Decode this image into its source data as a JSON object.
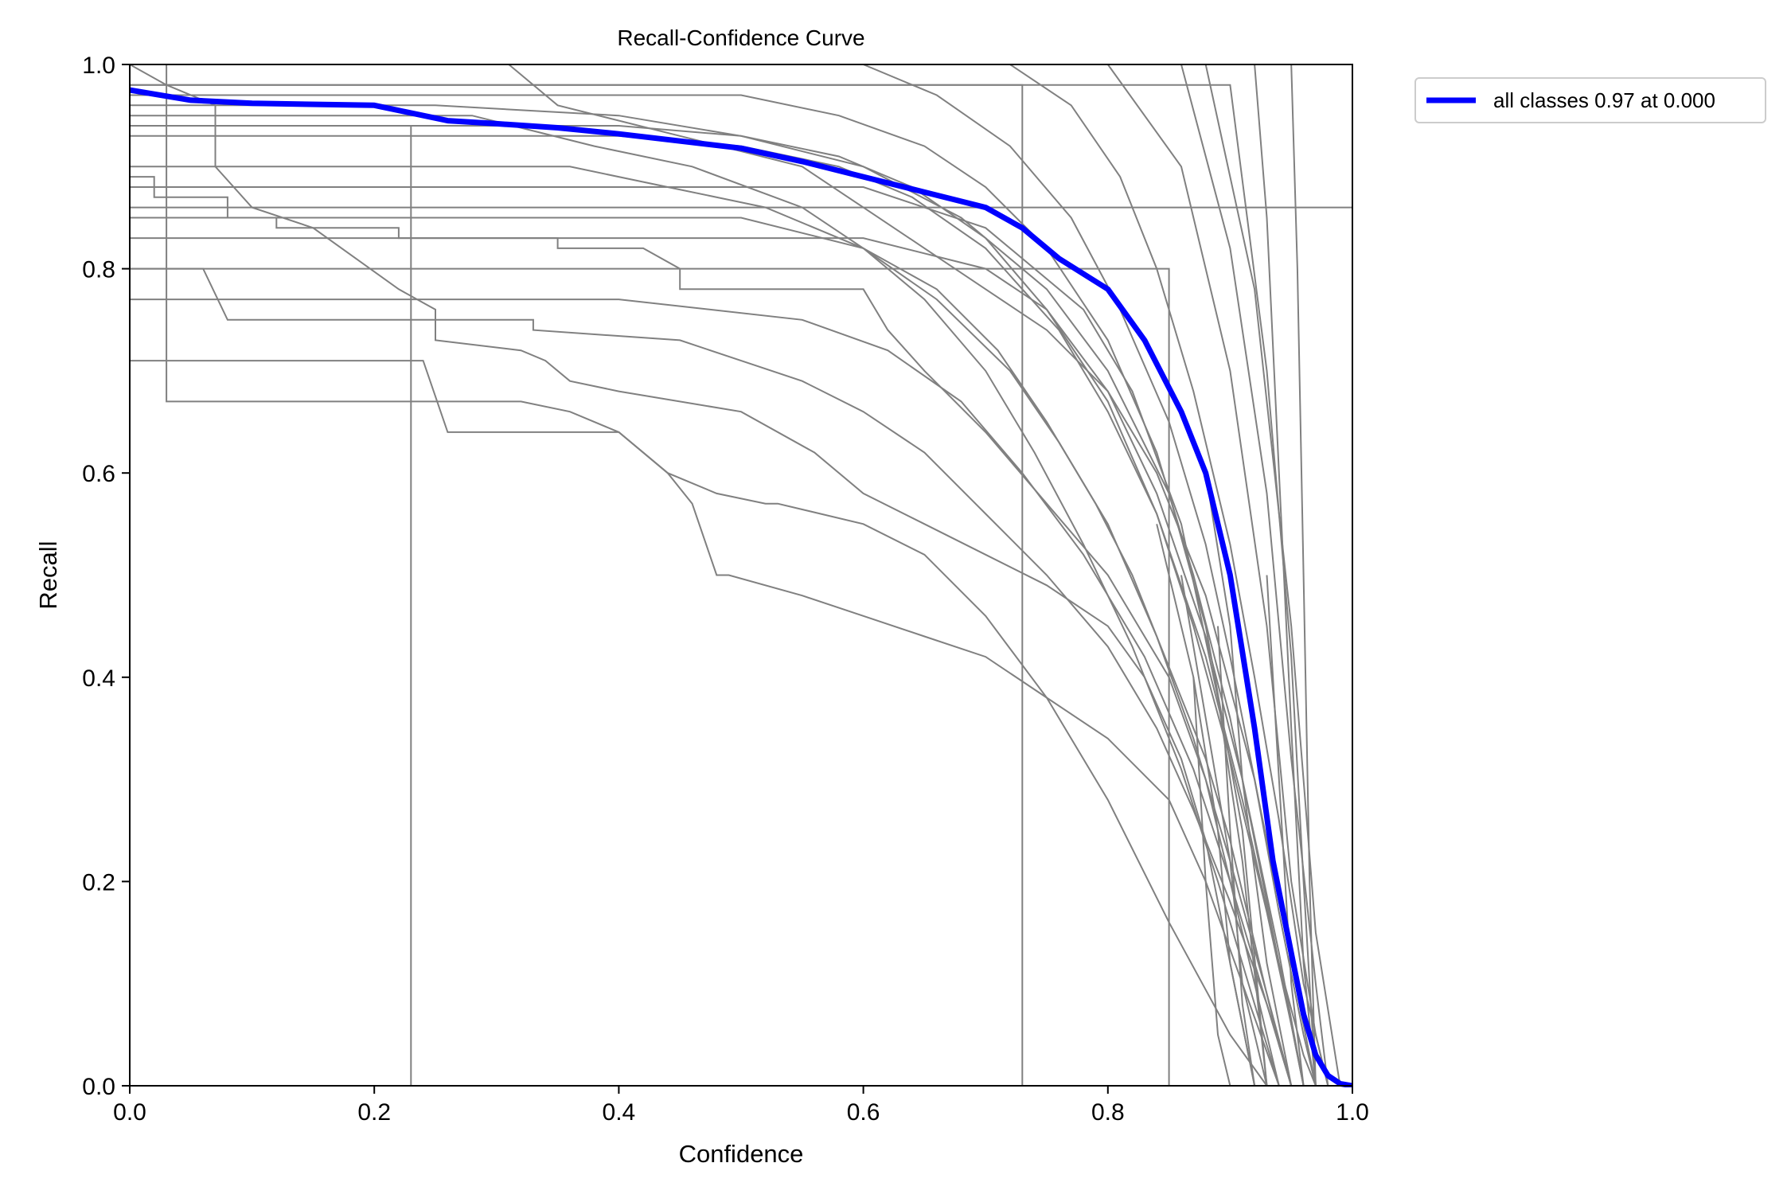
{
  "chart_data": {
    "type": "line",
    "title": "Recall-Confidence Curve",
    "xlabel": "Confidence",
    "ylabel": "Recall",
    "xlim": [
      0,
      1
    ],
    "ylim": [
      0,
      1
    ],
    "xticks": [
      "0.0",
      "0.2",
      "0.4",
      "0.6",
      "0.8",
      "1.0"
    ],
    "yticks": [
      "0.0",
      "0.2",
      "0.4",
      "0.6",
      "0.8",
      "1.0"
    ],
    "grid": false,
    "legend": {
      "placement": "outside-top-right",
      "entries": [
        "all classes 0.97 at 0.000"
      ]
    },
    "colors": {
      "class_lines": "#808080",
      "all_classes": "#0000ff"
    },
    "series": [
      {
        "name": "all classes 0.97 at 0.000",
        "emphasis": true,
        "x": [
          0,
          0.05,
          0.1,
          0.2,
          0.26,
          0.3,
          0.35,
          0.4,
          0.45,
          0.5,
          0.55,
          0.6,
          0.65,
          0.7,
          0.73,
          0.76,
          0.8,
          0.83,
          0.86,
          0.88,
          0.9,
          0.92,
          0.935,
          0.95,
          0.96,
          0.97,
          0.98,
          0.99,
          1.0
        ],
        "y": [
          0.975,
          0.965,
          0.962,
          0.96,
          0.945,
          0.942,
          0.938,
          0.932,
          0.925,
          0.918,
          0.905,
          0.89,
          0.875,
          0.86,
          0.84,
          0.81,
          0.78,
          0.73,
          0.66,
          0.6,
          0.5,
          0.35,
          0.22,
          0.13,
          0.07,
          0.03,
          0.01,
          0.002,
          0
        ]
      },
      {
        "x": [
          0,
          0.03,
          0.03,
          1.0
        ],
        "y": [
          0.86,
          0.86,
          0.86,
          0.86
        ]
      },
      {
        "x": [
          0,
          0.1,
          0.2,
          0.29,
          0.31,
          0.35,
          0.45,
          0.55,
          0.6,
          0.65,
          0.7,
          0.75,
          0.8,
          0.84,
          0.88,
          0.92,
          0.95,
          0.97
        ],
        "y": [
          1.0,
          1.0,
          1.0,
          1.0,
          1.0,
          0.96,
          0.93,
          0.9,
          0.86,
          0.82,
          0.78,
          0.74,
          0.68,
          0.6,
          0.48,
          0.3,
          0.12,
          0
        ]
      },
      {
        "x": [
          0,
          0.02,
          0.02,
          0.08,
          0.08,
          0.12,
          0.12,
          0.22,
          0.22,
          0.35,
          0.35,
          0.42,
          0.45,
          0.45,
          0.6,
          0.62,
          0.65,
          0.7,
          0.75,
          0.8,
          0.85,
          0.88,
          0.9,
          0.92,
          0.94
        ],
        "y": [
          0.89,
          0.89,
          0.87,
          0.87,
          0.85,
          0.85,
          0.84,
          0.84,
          0.83,
          0.83,
          0.82,
          0.82,
          0.8,
          0.78,
          0.78,
          0.74,
          0.7,
          0.64,
          0.57,
          0.5,
          0.4,
          0.3,
          0.2,
          0.1,
          0
        ]
      },
      {
        "x": [
          0,
          0.03,
          0.07,
          0.07,
          0.1,
          0.15,
          0.22,
          0.25,
          0.25,
          0.32,
          0.34,
          0.36,
          0.4,
          0.5,
          0.56,
          0.6,
          0.65,
          0.7,
          0.75,
          0.8,
          0.83,
          0.86,
          0.88,
          0.9,
          0.92
        ],
        "y": [
          1.0,
          0.98,
          0.96,
          0.9,
          0.86,
          0.84,
          0.78,
          0.76,
          0.73,
          0.72,
          0.71,
          0.69,
          0.68,
          0.66,
          0.62,
          0.58,
          0.55,
          0.52,
          0.49,
          0.45,
          0.4,
          0.32,
          0.24,
          0.12,
          0
        ]
      },
      {
        "x": [
          0,
          0.06,
          0.08,
          0.15,
          0.28,
          0.33,
          0.33,
          0.45,
          0.5,
          0.55,
          0.6,
          0.65,
          0.7,
          0.75,
          0.8,
          0.84,
          0.87,
          0.9,
          0.93,
          0.95
        ],
        "y": [
          0.8,
          0.8,
          0.75,
          0.75,
          0.75,
          0.75,
          0.74,
          0.73,
          0.71,
          0.69,
          0.66,
          0.62,
          0.56,
          0.5,
          0.43,
          0.35,
          0.27,
          0.18,
          0.08,
          0
        ]
      },
      {
        "x": [
          0,
          0.03,
          0.03,
          0.2,
          0.22,
          0.22,
          0.32,
          0.36,
          0.4,
          0.44,
          0.46,
          0.48,
          0.49,
          0.55,
          0.6,
          0.65,
          0.7,
          0.75,
          0.8,
          0.85,
          0.88,
          0.91,
          0.94
        ],
        "y": [
          1.0,
          1.0,
          0.67,
          0.67,
          0.67,
          0.67,
          0.67,
          0.66,
          0.64,
          0.6,
          0.57,
          0.5,
          0.5,
          0.48,
          0.46,
          0.44,
          0.42,
          0.38,
          0.34,
          0.28,
          0.2,
          0.1,
          0
        ]
      },
      {
        "x": [
          0,
          0.1,
          0.2,
          0.24,
          0.26,
          0.34,
          0.4,
          0.44,
          0.48,
          0.52,
          0.53,
          0.6,
          0.65,
          0.7,
          0.75,
          0.8,
          0.85,
          0.9,
          0.93
        ],
        "y": [
          0.71,
          0.71,
          0.71,
          0.71,
          0.64,
          0.64,
          0.64,
          0.6,
          0.58,
          0.57,
          0.57,
          0.55,
          0.52,
          0.46,
          0.38,
          0.28,
          0.16,
          0.05,
          0
        ]
      },
      {
        "x": [
          0,
          0.28,
          0.38,
          0.46,
          0.55,
          0.6,
          0.65,
          0.7,
          0.74,
          0.78,
          0.82,
          0.86,
          0.89,
          0.92,
          0.94
        ],
        "y": [
          0.95,
          0.95,
          0.92,
          0.9,
          0.86,
          0.82,
          0.77,
          0.7,
          0.62,
          0.53,
          0.43,
          0.31,
          0.2,
          0.08,
          0
        ]
      },
      {
        "x": [
          0,
          0.3,
          0.4,
          0.5,
          0.58,
          0.64,
          0.7,
          0.75,
          0.8,
          0.84,
          0.88,
          0.91,
          0.94,
          0.96
        ],
        "y": [
          0.94,
          0.94,
          0.94,
          0.93,
          0.91,
          0.88,
          0.83,
          0.76,
          0.67,
          0.56,
          0.42,
          0.28,
          0.12,
          0
        ]
      },
      {
        "x": [
          0,
          0.36,
          0.44,
          0.52,
          0.6,
          0.66,
          0.72,
          0.76,
          0.8,
          0.84,
          0.87,
          0.9,
          0.93,
          0.95
        ],
        "y": [
          0.9,
          0.9,
          0.88,
          0.86,
          0.82,
          0.77,
          0.7,
          0.63,
          0.55,
          0.44,
          0.34,
          0.22,
          0.09,
          0
        ]
      },
      {
        "x": [
          0,
          0.4,
          0.5,
          0.58,
          0.64,
          0.7,
          0.76,
          0.8,
          0.84,
          0.87,
          0.9,
          0.93,
          0.95,
          0.96
        ],
        "y": [
          0.93,
          0.93,
          0.92,
          0.9,
          0.87,
          0.82,
          0.74,
          0.66,
          0.56,
          0.45,
          0.32,
          0.17,
          0.06,
          0
        ]
      },
      {
        "x": [
          0,
          0.5,
          0.58,
          0.65,
          0.7,
          0.75,
          0.8,
          0.84,
          0.87,
          0.9,
          0.92,
          0.94,
          0.96,
          0.97
        ],
        "y": [
          0.97,
          0.97,
          0.95,
          0.92,
          0.88,
          0.82,
          0.73,
          0.62,
          0.5,
          0.36,
          0.24,
          0.12,
          0.03,
          0
        ]
      },
      {
        "x": [
          0,
          0.6,
          0.66,
          0.72,
          0.77,
          0.81,
          0.85,
          0.88,
          0.9,
          0.92,
          0.94,
          0.96,
          0.97
        ],
        "y": [
          1.0,
          1.0,
          0.97,
          0.92,
          0.85,
          0.76,
          0.65,
          0.53,
          0.42,
          0.3,
          0.17,
          0.05,
          0
        ]
      },
      {
        "x": [
          0,
          0.72,
          0.77,
          0.81,
          0.84,
          0.87,
          0.9,
          0.92,
          0.94,
          0.96,
          0.98
        ],
        "y": [
          1.0,
          1.0,
          0.96,
          0.89,
          0.8,
          0.68,
          0.53,
          0.4,
          0.26,
          0.1,
          0
        ]
      },
      {
        "x": [
          0,
          0.2,
          0.2,
          0.6,
          0.7,
          0.75,
          0.8,
          0.84,
          0.88,
          0.91,
          0.94,
          0.96
        ],
        "y": [
          0.83,
          0.83,
          0.83,
          0.83,
          0.8,
          0.76,
          0.68,
          0.58,
          0.44,
          0.3,
          0.13,
          0
        ]
      },
      {
        "x": [
          0,
          0.1,
          0.1,
          0.4,
          0.55,
          0.62,
          0.68,
          0.73,
          0.78,
          0.83,
          0.87,
          0.9,
          0.93,
          0.95
        ],
        "y": [
          0.77,
          0.77,
          0.77,
          0.77,
          0.75,
          0.72,
          0.67,
          0.6,
          0.52,
          0.42,
          0.31,
          0.2,
          0.08,
          0
        ]
      },
      {
        "x": [
          0,
          0.5,
          0.6,
          0.66,
          0.71,
          0.75,
          0.79,
          0.82,
          0.85,
          0.88,
          0.9,
          0.92,
          0.94,
          0.95
        ],
        "y": [
          0.85,
          0.85,
          0.82,
          0.78,
          0.72,
          0.65,
          0.57,
          0.5,
          0.41,
          0.32,
          0.24,
          0.14,
          0.04,
          0
        ]
      },
      {
        "x": [
          0,
          0.23,
          0.23,
          0.23
        ],
        "y": [
          0.94,
          0.94,
          0.5,
          0
        ]
      },
      {
        "x": [
          0,
          0.5,
          0.73,
          0.73,
          0.73
        ],
        "y": [
          0.98,
          0.98,
          0.98,
          0.5,
          0
        ]
      },
      {
        "x": [
          0,
          0.7,
          0.8,
          0.85,
          0.85,
          0.85
        ],
        "y": [
          0.8,
          0.8,
          0.8,
          0.8,
          0.4,
          0
        ]
      },
      {
        "x": [
          0,
          0.8,
          0.86,
          0.9,
          0.93,
          0.95,
          0.97,
          0.98
        ],
        "y": [
          1.0,
          1.0,
          0.9,
          0.7,
          0.45,
          0.2,
          0.05,
          0
        ]
      },
      {
        "x": [
          0,
          0.86,
          0.9,
          0.93,
          0.95,
          0.97,
          0.98
        ],
        "y": [
          1.0,
          1.0,
          0.82,
          0.58,
          0.32,
          0.1,
          0
        ]
      },
      {
        "x": [
          0,
          0.88,
          0.92,
          0.95,
          0.97,
          0.99
        ],
        "y": [
          1.0,
          1.0,
          0.78,
          0.45,
          0.15,
          0
        ]
      },
      {
        "x": [
          0,
          0.9,
          0.93,
          0.95,
          0.96,
          0.97
        ],
        "y": [
          0.98,
          0.98,
          0.7,
          0.42,
          0.2,
          0
        ]
      },
      {
        "x": [
          0.92,
          0.93,
          0.94,
          0.95,
          0.96,
          0.97
        ],
        "y": [
          1.0,
          0.85,
          0.6,
          0.35,
          0.12,
          0
        ]
      },
      {
        "x": [
          0.95,
          0.955,
          0.96,
          0.965,
          0.97
        ],
        "y": [
          1.0,
          0.8,
          0.5,
          0.2,
          0
        ]
      },
      {
        "x": [
          0.88,
          0.9,
          0.91,
          0.93,
          0.95
        ],
        "y": [
          0.6,
          0.45,
          0.3,
          0.12,
          0
        ]
      },
      {
        "x": [
          0.86,
          0.88,
          0.9,
          0.91,
          0.93
        ],
        "y": [
          0.5,
          0.36,
          0.22,
          0.1,
          0
        ]
      },
      {
        "x": [
          0.84,
          0.87,
          0.89,
          0.9,
          0.92
        ],
        "y": [
          0.55,
          0.4,
          0.25,
          0.12,
          0
        ]
      },
      {
        "x": [
          0,
          0.6,
          0.7,
          0.78,
          0.82,
          0.86,
          0.89,
          0.91,
          0.93
        ],
        "y": [
          0.88,
          0.88,
          0.84,
          0.76,
          0.68,
          0.55,
          0.38,
          0.22,
          0
        ]
      },
      {
        "x": [
          0,
          0.15,
          0.25,
          0.4,
          0.5,
          0.6,
          0.68,
          0.75,
          0.8,
          0.85,
          0.88,
          0.91,
          0.93
        ],
        "y": [
          0.96,
          0.96,
          0.96,
          0.95,
          0.93,
          0.9,
          0.85,
          0.78,
          0.7,
          0.58,
          0.45,
          0.25,
          0
        ]
      },
      {
        "x": [
          0.87,
          0.88,
          0.89,
          0.9
        ],
        "y": [
          0.4,
          0.2,
          0.05,
          0
        ]
      },
      {
        "x": [
          0.89,
          0.9,
          0.91,
          0.92
        ],
        "y": [
          0.45,
          0.25,
          0.08,
          0
        ]
      },
      {
        "x": [
          0.93,
          0.94,
          0.95,
          0.96
        ],
        "y": [
          0.5,
          0.3,
          0.1,
          0
        ]
      }
    ]
  }
}
